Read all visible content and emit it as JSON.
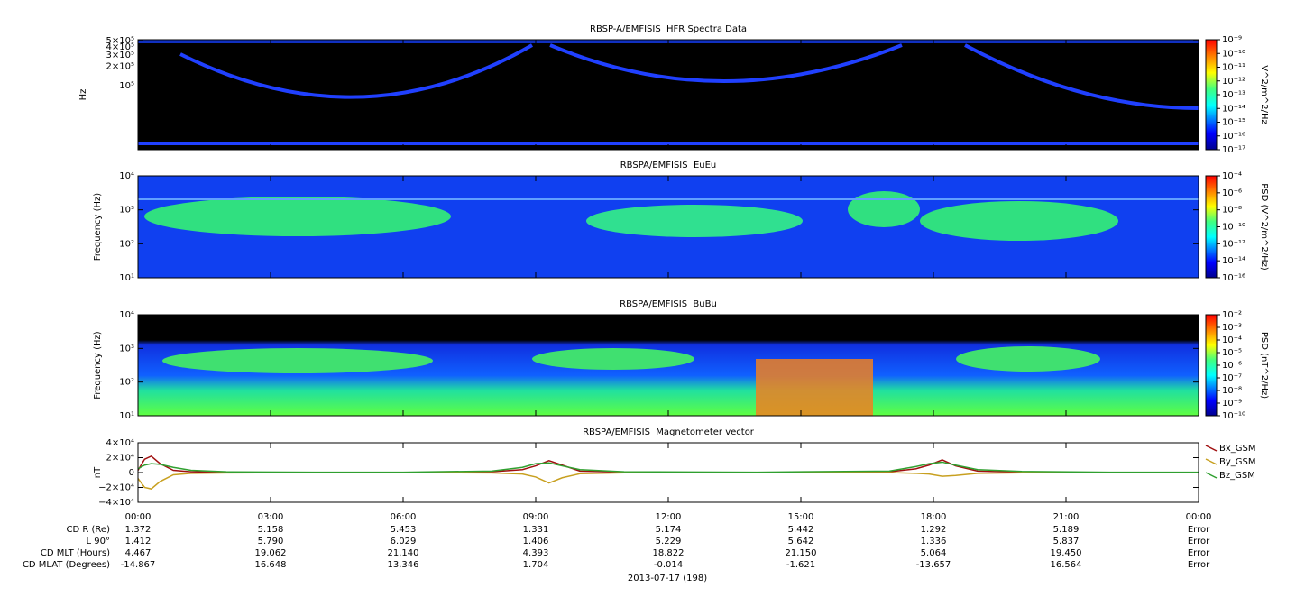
{
  "chart_data": [
    {
      "type": "spectrogram",
      "title": "RBSP-A/EMFISIS  HFR Spectra Data",
      "ylabel": "Hz",
      "log_y": true,
      "ylim": [
        10000,
        520000
      ],
      "yticks": [
        {
          "value": 100000,
          "label": "10⁵"
        },
        {
          "value": 200000,
          "label": "2×10⁵"
        },
        {
          "value": 300000,
          "label": "3×10⁵"
        },
        {
          "value": 400000,
          "label": "4×10⁵"
        },
        {
          "value": 500000,
          "label": "5×10⁵"
        }
      ],
      "colorbar": {
        "label": "V^2/m^2/Hz",
        "lim": [
          1e-17,
          1e-09
        ],
        "ticks": [
          {
            "value": 1e-09,
            "label": "10⁻⁹"
          },
          {
            "value": 1e-10,
            "label": "10⁻¹⁰"
          },
          {
            "value": 1e-11,
            "label": "10⁻¹¹"
          },
          {
            "value": 1e-12,
            "label": "10⁻¹²"
          },
          {
            "value": 1e-13,
            "label": "10⁻¹³"
          },
          {
            "value": 1e-14,
            "label": "10⁻¹⁴"
          },
          {
            "value": 1e-15,
            "label": "10⁻¹⁵"
          },
          {
            "value": 1e-16,
            "label": "10⁻¹⁶"
          },
          {
            "value": 1e-17,
            "label": "10⁻¹⁷"
          }
        ]
      }
    },
    {
      "type": "spectrogram",
      "title": "RBSPA/EMFISIS  EuEu",
      "ylabel": "Frequency (Hz)",
      "log_y": true,
      "ylim": [
        10,
        10000
      ],
      "yticks": [
        {
          "value": 10,
          "label": "10¹"
        },
        {
          "value": 100,
          "label": "10²"
        },
        {
          "value": 1000,
          "label": "10³"
        },
        {
          "value": 10000,
          "label": "10⁴"
        }
      ],
      "colorbar": {
        "label": "PSD (V^2/m^2/Hz)",
        "lim": [
          1e-16,
          0.0001
        ],
        "ticks": [
          {
            "value": 0.0001,
            "label": "10⁻⁴"
          },
          {
            "value": 1e-06,
            "label": "10⁻⁶"
          },
          {
            "value": 1e-08,
            "label": "10⁻⁸"
          },
          {
            "value": 1e-10,
            "label": "10⁻¹⁰"
          },
          {
            "value": 1e-12,
            "label": "10⁻¹²"
          },
          {
            "value": 1e-14,
            "label": "10⁻¹⁴"
          },
          {
            "value": 1e-16,
            "label": "10⁻¹⁶"
          }
        ]
      }
    },
    {
      "type": "spectrogram",
      "title": "RBSPA/EMFISIS  BuBu",
      "ylabel": "Frequency (Hz)",
      "log_y": true,
      "ylim": [
        10,
        10000
      ],
      "yticks": [
        {
          "value": 10,
          "label": "10¹"
        },
        {
          "value": 100,
          "label": "10²"
        },
        {
          "value": 1000,
          "label": "10³"
        },
        {
          "value": 10000,
          "label": "10⁴"
        }
      ],
      "colorbar": {
        "label": "PSD (nT^2/Hz)",
        "lim": [
          1e-10,
          0.01
        ],
        "ticks": [
          {
            "value": 0.01,
            "label": "10⁻²"
          },
          {
            "value": 0.001,
            "label": "10⁻³"
          },
          {
            "value": 0.0001,
            "label": "10⁻⁴"
          },
          {
            "value": 1e-05,
            "label": "10⁻⁵"
          },
          {
            "value": 1e-06,
            "label": "10⁻⁶"
          },
          {
            "value": 1e-07,
            "label": "10⁻⁷"
          },
          {
            "value": 1e-08,
            "label": "10⁻⁸"
          },
          {
            "value": 1e-09,
            "label": "10⁻⁹"
          },
          {
            "value": 1e-10,
            "label": "10⁻¹⁰"
          }
        ]
      }
    },
    {
      "type": "line",
      "title": "RBSPA/EMFISIS  Magnetometer vector",
      "ylabel": "nT",
      "ylim": [
        -40000,
        40000
      ],
      "yticks": [
        {
          "value": 40000,
          "label": "4×10⁴"
        },
        {
          "value": 20000,
          "label": "2×10⁴"
        },
        0,
        {
          "value": -20000,
          "label": "−2×10⁴"
        },
        {
          "value": -40000,
          "label": "−4×10⁴"
        }
      ],
      "xlim": [
        0,
        24
      ],
      "xticks": [
        {
          "value": 0,
          "label": "00:00"
        },
        {
          "value": 3,
          "label": "03:00"
        },
        {
          "value": 6,
          "label": "06:00"
        },
        {
          "value": 9,
          "label": "09:00"
        },
        {
          "value": 12,
          "label": "12:00"
        },
        {
          "value": 15,
          "label": "15:00"
        },
        {
          "value": 18,
          "label": "18:00"
        },
        {
          "value": 21,
          "label": "21:00"
        },
        {
          "value": 24,
          "label": "00:00"
        }
      ],
      "x": [
        0,
        0.15,
        0.3,
        0.5,
        0.8,
        1.2,
        2,
        4,
        6,
        8,
        8.7,
        9.0,
        9.3,
        9.6,
        10,
        11,
        14,
        17,
        17.6,
        17.9,
        18.2,
        18.5,
        19,
        20,
        22,
        24
      ],
      "series": [
        {
          "name": "Bx_GSM",
          "color": "#a01010",
          "values": [
            3000,
            18000,
            22000,
            12000,
            3000,
            1000,
            500,
            0,
            0,
            1000,
            4000,
            9000,
            16000,
            10000,
            2000,
            500,
            0,
            1000,
            5000,
            10000,
            17000,
            9000,
            2000,
            500,
            0,
            0
          ]
        },
        {
          "name": "By_GSM",
          "color": "#c8a020",
          "values": [
            -8000,
            -20000,
            -22000,
            -12000,
            -3000,
            -1000,
            -500,
            0,
            0,
            -500,
            -2000,
            -6000,
            -14000,
            -7000,
            -1500,
            -300,
            0,
            0,
            -1000,
            -2000,
            -5000,
            -4000,
            -1000,
            -300,
            0,
            0
          ]
        },
        {
          "name": "Bz_GSM",
          "color": "#30a030",
          "values": [
            5000,
            10000,
            12000,
            11000,
            7000,
            3000,
            1000,
            500,
            500,
            2000,
            7000,
            12000,
            13000,
            9000,
            4000,
            1000,
            500,
            2000,
            8000,
            12000,
            14000,
            10000,
            4000,
            1500,
            500,
            500
          ]
        }
      ]
    }
  ],
  "ephemeris": {
    "rows": [
      {
        "label": "CD R (Re)",
        "values": [
          "1.372",
          "5.158",
          "5.453",
          "1.331",
          "5.174",
          "5.442",
          "1.292",
          "5.189",
          "Error"
        ]
      },
      {
        "label": "L 90°",
        "values": [
          "1.412",
          "5.790",
          "6.029",
          "1.406",
          "5.229",
          "5.642",
          "1.336",
          "5.837",
          "Error"
        ]
      },
      {
        "label": "CD MLT (Hours)",
        "values": [
          "4.467",
          "19.062",
          "21.140",
          "4.393",
          "18.822",
          "21.150",
          "5.064",
          "19.450",
          "Error"
        ]
      },
      {
        "label": "CD MLAT (Degrees)",
        "values": [
          "-14.867",
          "16.648",
          "13.346",
          "1.704",
          "-0.014",
          "-1.621",
          "-13.657",
          "16.564",
          "Error"
        ]
      }
    ]
  },
  "date_label": "2013-07-17 (198)"
}
